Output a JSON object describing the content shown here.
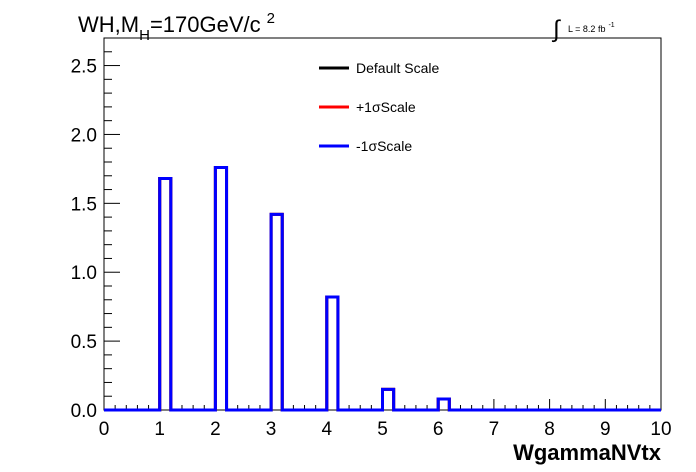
{
  "chart_data": {
    "type": "line",
    "title_parts": {
      "main": "WH,M",
      "sub": "H",
      "rest": "=170GeV/c",
      "sup": "2"
    },
    "lumi_label": {
      "integral": "∫",
      "text": "L = 8.2 fb",
      "sup": "-1"
    },
    "xlabel": "WgammaNVtx",
    "ylabel": "",
    "xlim": [
      0,
      10
    ],
    "ylim": [
      0,
      2.7
    ],
    "x_ticks": [
      "0",
      "1",
      "2",
      "3",
      "4",
      "5",
      "6",
      "7",
      "8",
      "9",
      "10"
    ],
    "y_ticks": [
      "0.0",
      "0.5",
      "1.0",
      "1.5",
      "2.0",
      "2.5"
    ],
    "bin_width": 0.2,
    "bins": [
      {
        "x_low": 1.0,
        "value": 1.68
      },
      {
        "x_low": 2.0,
        "value": 1.76
      },
      {
        "x_low": 3.0,
        "value": 1.42
      },
      {
        "x_low": 4.0,
        "value": 0.82
      },
      {
        "x_low": 5.0,
        "value": 0.15
      },
      {
        "x_low": 6.0,
        "value": 0.08
      }
    ],
    "series": [
      {
        "name": "Default Scale",
        "color": "#000000"
      },
      {
        "name": "+1σScale",
        "color": "#ff0000"
      },
      {
        "name": "-1σScale",
        "color": "#0000ff"
      }
    ],
    "legend_position": "top-center",
    "grid": false
  }
}
